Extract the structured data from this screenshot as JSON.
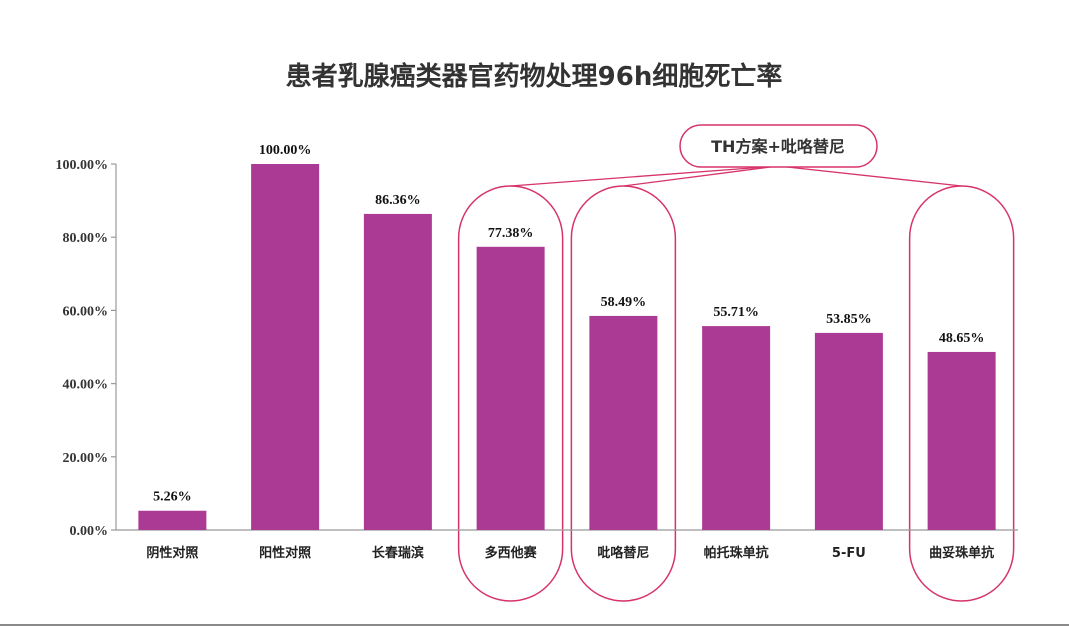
{
  "chart_data": {
    "type": "bar",
    "title": "患者乳腺癌类器官药物处理96h细胞死亡率",
    "categories": [
      "阴性对照",
      "阳性对照",
      "长春瑞滨",
      "多西他赛",
      "吡咯替尼",
      "帕托珠单抗",
      "5-FU",
      "曲妥珠单抗"
    ],
    "values": [
      5.26,
      100.0,
      86.36,
      77.38,
      58.49,
      55.71,
      53.85,
      48.65
    ],
    "data_labels": [
      "5.26%",
      "100.00%",
      "86.36%",
      "77.38%",
      "58.49%",
      "55.71%",
      "53.85%",
      "48.65%"
    ],
    "ylim": [
      0,
      100
    ],
    "yticks": [
      "0.00%",
      "20.00%",
      "40.00%",
      "60.00%",
      "80.00%",
      "100.00%"
    ],
    "grid": false,
    "bar_color": "#aa3a93",
    "highlight_color": "#d6336c",
    "annotation": {
      "text": "TH方案+吡咯替尼",
      "highlighted_categories": [
        3,
        4,
        7
      ]
    }
  }
}
